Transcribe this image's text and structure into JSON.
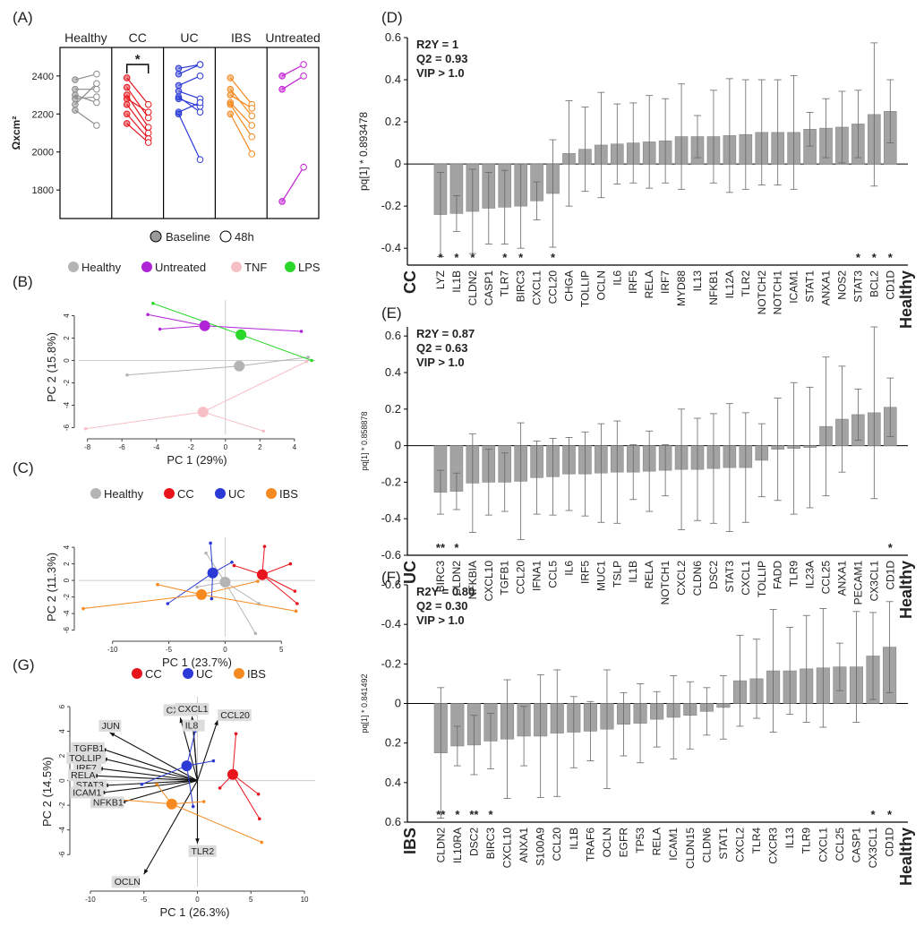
{
  "panel_labels": {
    "A": "(A)",
    "B": "(B)",
    "C": "(C)",
    "D": "(D)",
    "E": "(E)",
    "F": "(F)",
    "G": "(G)"
  },
  "legend_A": {
    "baseline": "Baseline",
    "h48": "48h"
  },
  "sig_star": "*",
  "chart_data": [
    {
      "id": "A",
      "type": "scatter",
      "ylabel": "Ωxcm²",
      "ylim": [
        1650,
        2550
      ],
      "yticks": [
        1800,
        2000,
        2200,
        2400
      ],
      "groups": [
        {
          "name": "Healthy",
          "color": "#8c8c8c",
          "pairs": [
            [
              2380,
              2410
            ],
            [
              2330,
              2330
            ],
            [
              2300,
              2260
            ],
            [
              2280,
              2290
            ],
            [
              2250,
              2360
            ],
            [
              2220,
              2140
            ]
          ]
        },
        {
          "name": "CC",
          "color": "#e8141c",
          "pairs": [
            [
              2390,
              2250
            ],
            [
              2340,
              2180
            ],
            [
              2300,
              2130
            ],
            [
              2280,
              2210
            ],
            [
              2250,
              2100
            ],
            [
              2200,
              2070
            ],
            [
              2150,
              2050
            ]
          ]
        },
        {
          "name": "UC",
          "color": "#2b3ad6",
          "pairs": [
            [
              2440,
              2460
            ],
            [
              2410,
              2460
            ],
            [
              2350,
              2400
            ],
            [
              2320,
              2280
            ],
            [
              2290,
              2210
            ],
            [
              2280,
              2240
            ],
            [
              2210,
              2260
            ],
            [
              2200,
              1960
            ]
          ]
        },
        {
          "name": "IBS",
          "color": "#f6891f",
          "pairs": [
            [
              2390,
              2250
            ],
            [
              2330,
              2190
            ],
            [
              2300,
              2230
            ],
            [
              2260,
              2140
            ],
            [
              2250,
              2080
            ],
            [
              2200,
              1990
            ]
          ]
        },
        {
          "name": "Untreated",
          "color": "#c41ed6",
          "pairs": [
            [
              2400,
              2460
            ],
            [
              2330,
              2400
            ],
            [
              1740,
              1920
            ]
          ]
        }
      ]
    },
    {
      "id": "B",
      "type": "scatter",
      "xlabel": "PC 1 (29%)",
      "ylabel": "PC 2 (15.8%)",
      "xlim": [
        -8.5,
        5.2
      ],
      "ylim": [
        -6.6,
        5.4
      ],
      "xticks": [
        -8,
        -6,
        -4,
        -2,
        0,
        2,
        4
      ],
      "yticks": [
        -6,
        -4,
        -2,
        0,
        2,
        4
      ],
      "series": [
        {
          "name": "Healthy",
          "color": "#b4b4b4",
          "center": [
            0.8,
            -0.5
          ],
          "points": [
            [
              -5.7,
              -1.3
            ],
            [
              4.8,
              0.3
            ]
          ]
        },
        {
          "name": "Untreated",
          "color": "#b024d8",
          "center": [
            -1.2,
            3.1
          ],
          "points": [
            [
              -4.5,
              4.1
            ],
            [
              -3.8,
              2.8
            ],
            [
              4.4,
              2.6
            ]
          ]
        },
        {
          "name": "TNF",
          "color": "#f6bfc6",
          "center": [
            -1.3,
            -4.6
          ],
          "points": [
            [
              -8.1,
              -6.1
            ],
            [
              2.2,
              -6.3
            ],
            [
              4.7,
              -0.1
            ]
          ]
        },
        {
          "name": "LPS",
          "color": "#2bd82a",
          "center": [
            0.9,
            2.3
          ],
          "points": [
            [
              -4.2,
              5.1
            ],
            [
              5.0,
              0.0
            ]
          ]
        }
      ]
    },
    {
      "id": "C",
      "type": "scatter",
      "xlabel": "PC 1 (23.7%)",
      "ylabel": "PC 2 (11.3%)",
      "xlim": [
        -13,
        8
      ],
      "ylim": [
        -6.8,
        5.2
      ],
      "xticks": [
        -10,
        -5,
        0,
        5
      ],
      "yticks": [
        -6,
        -4,
        -2,
        0,
        2,
        4
      ],
      "series": [
        {
          "name": "Healthy",
          "color": "#b4b4b4",
          "center": [
            0.0,
            -0.2
          ],
          "points": [
            [
              -1.7,
              3.3
            ],
            [
              -2.5,
              -0.8
            ],
            [
              3.0,
              -2.8
            ],
            [
              2.7,
              -6.4
            ]
          ]
        },
        {
          "name": "CC",
          "color": "#e8141c",
          "center": [
            3.3,
            0.7
          ],
          "points": [
            [
              3.5,
              4.1
            ],
            [
              5.8,
              2.0
            ],
            [
              6.2,
              -1.3
            ],
            [
              6.4,
              -2.8
            ],
            [
              0.8,
              1.8
            ]
          ]
        },
        {
          "name": "UC",
          "color": "#2b3ad6",
          "center": [
            -1.1,
            0.9
          ],
          "points": [
            [
              -1.3,
              4.5
            ],
            [
              0.6,
              2.2
            ],
            [
              -1.2,
              -2.2
            ],
            [
              -5.1,
              -2.8
            ]
          ]
        },
        {
          "name": "IBS",
          "color": "#f6891f",
          "center": [
            -2.1,
            -1.7
          ],
          "points": [
            [
              -12.6,
              -3.4
            ],
            [
              -6.0,
              -0.5
            ],
            [
              2.9,
              -0.1
            ],
            [
              6.3,
              -3.7
            ]
          ]
        }
      ]
    },
    {
      "id": "G",
      "type": "scatter",
      "xlabel": "PC 1 (26.3%)",
      "ylabel": "PC 2 (14.5%)",
      "xlim": [
        -11.5,
        11
      ],
      "ylim": [
        -8.6,
        6.8
      ],
      "xticks": [
        -10,
        -5,
        0,
        5,
        10
      ],
      "yticks": [
        -6,
        -4,
        -2,
        0,
        2,
        4,
        6
      ],
      "series": [
        {
          "name": "CC",
          "color": "#e8141c",
          "center": [
            3.3,
            0.5
          ],
          "points": [
            [
              3.6,
              3.8
            ],
            [
              5.7,
              -1.1
            ],
            [
              5.8,
              -3.1
            ],
            [
              2.1,
              -0.6
            ]
          ]
        },
        {
          "name": "UC",
          "color": "#2b3ad6",
          "center": [
            -1.0,
            1.2
          ],
          "points": [
            [
              -0.2,
              4.0
            ],
            [
              1.5,
              1.6
            ],
            [
              -0.4,
              -2.1
            ],
            [
              -5.2,
              -0.3
            ]
          ]
        },
        {
          "name": "IBS",
          "color": "#f6891f",
          "center": [
            -2.4,
            -1.9
          ],
          "points": [
            [
              -10.5,
              -1.3
            ],
            [
              -3.8,
              -0.3
            ],
            [
              0.6,
              -1.7
            ],
            [
              6.0,
              -5.0
            ]
          ]
        }
      ],
      "loadings": [
        {
          "name": "CXCL2",
          "x": -1.6,
          "y": 5.1
        },
        {
          "name": "CXCL1",
          "x": -0.5,
          "y": 5.2
        },
        {
          "name": "IL8",
          "x": -0.4,
          "y": 4.5
        },
        {
          "name": "CCL20",
          "x": 1.9,
          "y": 4.9
        },
        {
          "name": "JUN",
          "x": -8.2,
          "y": 3.9
        },
        {
          "name": "TGFB1",
          "x": -9.0,
          "y": 2.6
        },
        {
          "name": "TOLLIP",
          "x": -8.9,
          "y": 1.8
        },
        {
          "name": "IRF7",
          "x": -9.3,
          "y": 1.0
        },
        {
          "name": "RELA",
          "x": -9.8,
          "y": 0.4
        },
        {
          "name": "STAT3",
          "x": -8.8,
          "y": -0.4
        },
        {
          "name": "ICAM1",
          "x": -9.1,
          "y": -1.0
        },
        {
          "name": "NFKB1",
          "x": -7.2,
          "y": -1.8
        },
        {
          "name": "TLR2",
          "x": 0.0,
          "y": -5.1
        },
        {
          "name": "OCLN",
          "x": -5.0,
          "y": -7.6
        }
      ]
    },
    {
      "id": "D",
      "type": "bar",
      "ylabel": "pq[1] * 0.893478",
      "ylim": [
        -0.48,
        0.6
      ],
      "yticks": [
        -0.4,
        -0.2,
        0,
        0.2,
        0.4,
        0.6
      ],
      "inverted": false,
      "stats": [
        "R2Y = 1",
        "Q2 = 0.93",
        "VIP > 1.0"
      ],
      "left_label": "CC",
      "right_label": "Healthy",
      "categories": [
        "LYZ",
        "IL1B",
        "CLDN2",
        "CASP1",
        "TLR7",
        "BIRC3",
        "CXCL1",
        "CCL20",
        "CHGA",
        "TOLLIP",
        "OCLN",
        "IL6",
        "IRF5",
        "RELA",
        "IRF7",
        "MYD88",
        "IL13",
        "NFKB1",
        "IL12A",
        "TLR2",
        "NOTCH2",
        "NOTCH1",
        "ICAM1",
        "STAT1",
        "ANXA1",
        "NOS2",
        "STAT3",
        "BCL2",
        "CD1D"
      ],
      "values": [
        -0.24,
        -0.235,
        -0.225,
        -0.21,
        -0.205,
        -0.2,
        -0.175,
        -0.14,
        0.05,
        0.07,
        0.09,
        0.095,
        0.1,
        0.105,
        0.11,
        0.13,
        0.13,
        0.13,
        0.135,
        0.14,
        0.15,
        0.15,
        0.15,
        0.165,
        0.17,
        0.175,
        0.19,
        0.235,
        0.25
      ],
      "err": [
        0.2,
        0.085,
        0.2,
        0.17,
        0.175,
        0.2,
        0.09,
        0.255,
        0.25,
        0.2,
        0.25,
        0.19,
        0.19,
        0.22,
        0.2,
        0.25,
        0.1,
        0.22,
        0.27,
        0.26,
        0.25,
        0.25,
        0.27,
        0.08,
        0.14,
        0.17,
        0.16,
        0.34,
        0.15
      ],
      "sig": [
        "*",
        "*",
        "*",
        "",
        "*",
        "*",
        "",
        "*",
        "",
        "",
        "",
        "",
        "",
        "",
        "",
        "",
        "",
        "",
        "",
        "",
        "",
        "",
        "",
        "",
        "",
        "",
        "*",
        "*",
        "*"
      ]
    },
    {
      "id": "E",
      "type": "bar",
      "ylabel": "pq[1] * 0.858878",
      "ylim": [
        -0.6,
        0.65
      ],
      "yticks": [
        -0.6,
        -0.4,
        -0.2,
        0,
        0.2,
        0.4,
        0.6
      ],
      "inverted": false,
      "stats": [
        "R2Y = 0.87",
        "Q2 = 0.63",
        "VIP > 1.0"
      ],
      "left_label": "UC",
      "right_label": "Healthy",
      "categories": [
        "BIRC3",
        "CLDN2",
        "NFKBIA",
        "CXCL10",
        "TGFB1",
        "CCL20",
        "IFNA1",
        "CCL5",
        "IL6",
        "IRF5",
        "MUC1",
        "TSLP",
        "IL1B",
        "RELA",
        "NOTCH1",
        "CXCL2",
        "CLDN6",
        "DSC2",
        "STAT3",
        "CXCL1",
        "TOLLIP",
        "FADD",
        "TLR9",
        "IL23A",
        "CCL25",
        "ANXA1",
        "PECAM1",
        "CX3CL1",
        "CD1D"
      ],
      "values": [
        -0.255,
        -0.25,
        -0.205,
        -0.2,
        -0.2,
        -0.195,
        -0.175,
        -0.17,
        -0.155,
        -0.155,
        -0.15,
        -0.145,
        -0.145,
        -0.14,
        -0.135,
        -0.13,
        -0.13,
        -0.125,
        -0.12,
        -0.12,
        -0.08,
        -0.02,
        -0.015,
        -0.01,
        0.105,
        0.145,
        0.17,
        0.18,
        0.21
      ],
      "err": [
        0.12,
        0.1,
        0.27,
        0.18,
        0.16,
        0.32,
        0.2,
        0.21,
        0.2,
        0.23,
        0.27,
        0.28,
        0.15,
        0.22,
        0.14,
        0.33,
        0.28,
        0.3,
        0.35,
        0.3,
        0.2,
        0.28,
        0.36,
        0.33,
        0.38,
        0.29,
        0.14,
        0.47,
        0.16
      ],
      "sig": [
        "**",
        "*",
        "",
        "",
        "",
        "",
        "",
        "",
        "",
        "",
        "",
        "",
        "",
        "",
        "",
        "",
        "",
        "",
        "",
        "",
        "",
        "",
        "",
        "",
        "",
        "",
        "",
        "",
        "*"
      ]
    },
    {
      "id": "F",
      "type": "bar",
      "ylabel": "pq[1] * 0.841492",
      "ylim": [
        -0.6,
        0.6
      ],
      "yticks": [
        -0.6,
        -0.4,
        -0.2,
        0,
        0.2,
        0.4,
        0.6
      ],
      "inverted": true,
      "stats": [
        "R2Y = 0.80",
        "Q2 = 0.30",
        "VIP > 1.0"
      ],
      "left_label": "IBS",
      "right_label": "Healthy",
      "categories": [
        "CLDN2",
        "IL10RA",
        "DSC2",
        "BIRC3",
        "CXCL10",
        "ANXA1",
        "S100A9",
        "CCL20",
        "IL1B",
        "TRAF6",
        "OCLN",
        "EGFR",
        "TP53",
        "RELA",
        "ICAM1",
        "CLDN15",
        "CLDN6",
        "STAT1",
        "CXCL2",
        "TLR4",
        "CXCR3",
        "IL13",
        "TLR9",
        "CXCL1",
        "CCL25",
        "CASP1",
        "CX3CL1",
        "CD1D"
      ],
      "values": [
        0.25,
        0.215,
        0.21,
        0.19,
        0.18,
        0.165,
        0.165,
        0.15,
        0.145,
        0.14,
        0.13,
        0.105,
        0.1,
        0.08,
        0.07,
        0.06,
        0.04,
        0.02,
        -0.115,
        -0.125,
        -0.165,
        -0.165,
        -0.175,
        -0.18,
        -0.185,
        -0.185,
        -0.24,
        -0.285
      ],
      "err": [
        0.33,
        0.1,
        0.15,
        0.14,
        0.3,
        0.15,
        0.31,
        0.32,
        0.18,
        0.15,
        0.3,
        0.16,
        0.2,
        0.14,
        0.21,
        0.17,
        0.12,
        0.16,
        0.23,
        0.2,
        0.31,
        0.22,
        0.27,
        0.3,
        0.12,
        0.28,
        0.22,
        0.23
      ],
      "sig": [
        "**",
        "*",
        "**",
        "*",
        "",
        "",
        "",
        "",
        "",
        "",
        "",
        "",
        "",
        "",
        "",
        "",
        "",
        "",
        "",
        "",
        "",
        "",
        "",
        "",
        "",
        "",
        "*",
        "*"
      ]
    }
  ]
}
